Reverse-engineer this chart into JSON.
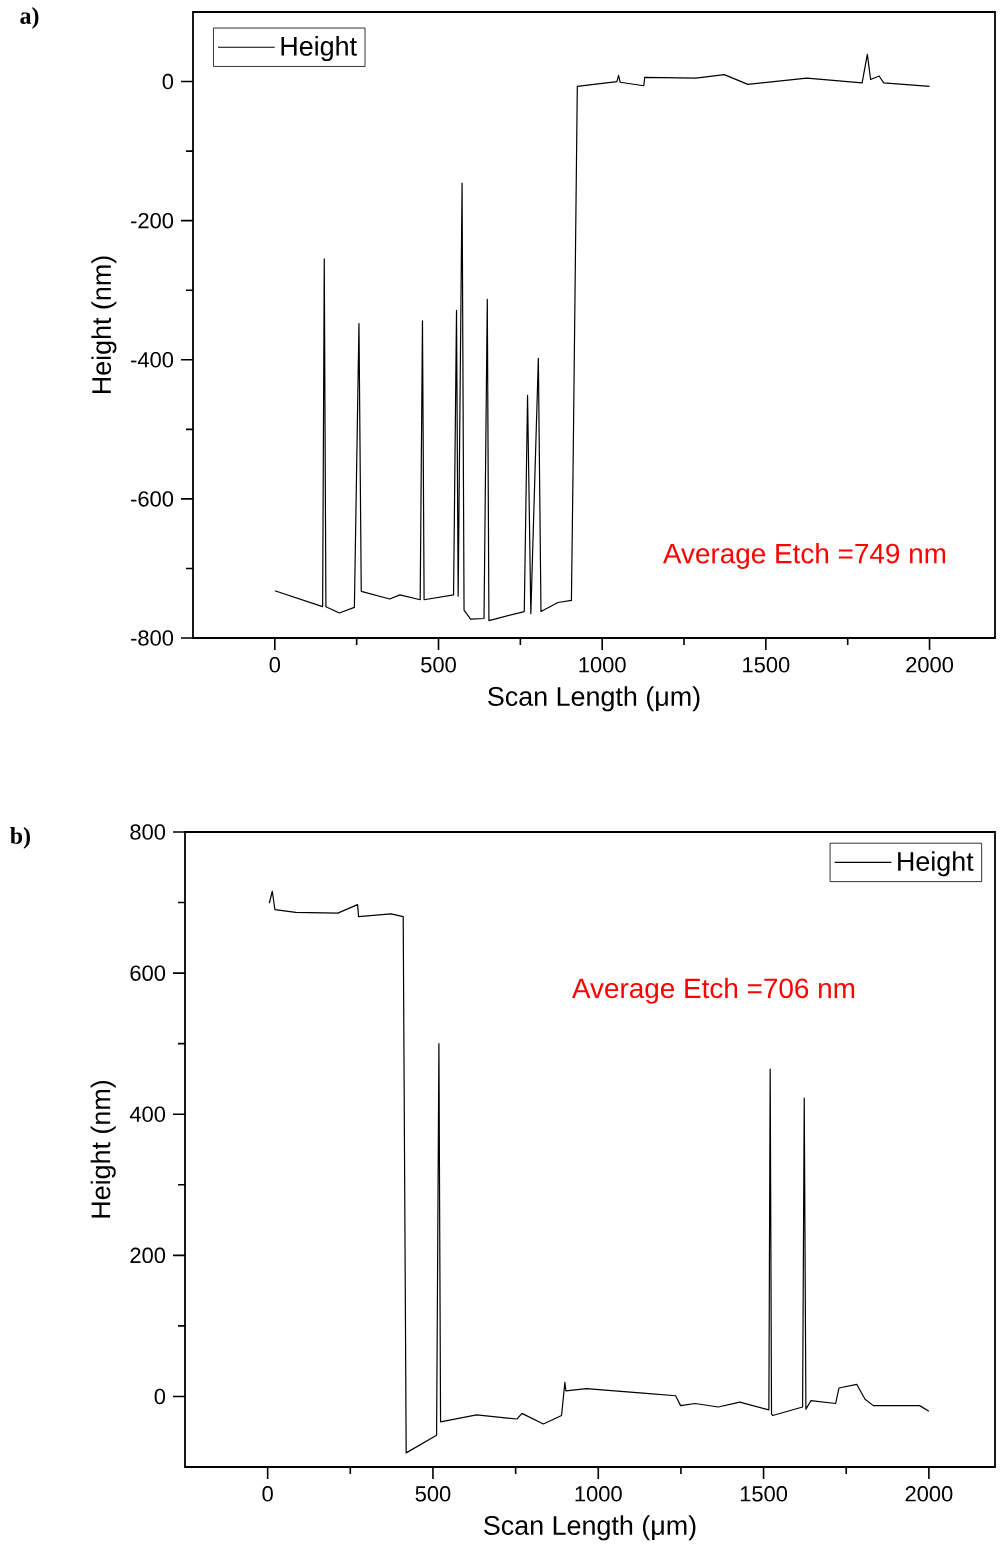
{
  "chart_data": [
    {
      "type": "line",
      "title": "a)",
      "xlabel": "Scan Length (μm)",
      "ylabel": "Height (nm)",
      "legend": "top left",
      "xlim": [
        -250,
        2200
      ],
      "ylim": [
        -800,
        100
      ],
      "xticks": [
        0,
        500,
        1000,
        1500,
        2000
      ],
      "yticks": [
        -800,
        -600,
        -400,
        -200,
        0
      ],
      "annotations": [
        "Average Etch =749 nm"
      ],
      "x": [
        0,
        146,
        151,
        156,
        197,
        243,
        257,
        264,
        351,
        382,
        444,
        451,
        456,
        546,
        555,
        560,
        572,
        578,
        598,
        639,
        649,
        654,
        762,
        772,
        782,
        805,
        813,
        865,
        906,
        911,
        924,
        1045,
        1050,
        1055,
        1127,
        1130,
        1286,
        1373,
        1445,
        1625,
        1794,
        1810,
        1820,
        1846,
        1860,
        2000
      ],
      "series": [
        {
          "name": "Height",
          "color": "#000000",
          "values": [
            -732,
            -755,
            -255,
            -755,
            -764,
            -756,
            -348,
            -733,
            -744,
            -738,
            -745,
            -344,
            -745,
            -738,
            -329,
            -740,
            -146,
            -760,
            -773,
            -772,
            -313,
            -775,
            -762,
            -451,
            -765,
            -398,
            -762,
            -749,
            -746,
            -559,
            -7,
            0,
            9,
            -1,
            -6,
            6,
            5,
            10,
            -4,
            5,
            -2,
            39,
            3,
            8,
            -2,
            -7
          ]
        }
      ]
    },
    {
      "type": "line",
      "title": "b)",
      "xlabel": "Scan Length (μm)",
      "ylabel": "Height (nm)",
      "legend": "top right",
      "xlim": [
        -250,
        2200
      ],
      "ylim": [
        -100,
        800
      ],
      "xticks": [
        0,
        500,
        1000,
        1500,
        2000
      ],
      "yticks": [
        0,
        200,
        400,
        600,
        800
      ],
      "annotations": [
        "Average Etch =706 nm"
      ],
      "x": [
        5,
        14,
        22,
        85,
        212,
        272,
        275,
        373,
        410,
        419,
        511,
        518,
        523,
        632,
        754,
        769,
        834,
        889,
        899,
        902,
        964,
        1154,
        1234,
        1249,
        1293,
        1363,
        1428,
        1516,
        1520,
        1524,
        1528,
        1618,
        1623,
        1628,
        1643,
        1718,
        1728,
        1782,
        1807,
        1832,
        1972,
        2000
      ],
      "series": [
        {
          "name": "Height",
          "color": "#000000",
          "values": [
            699,
            716,
            690,
            686,
            685,
            697,
            680,
            684,
            680,
            -80,
            -55,
            500,
            -36,
            -26,
            -32,
            -24,
            -39,
            -27,
            20,
            8,
            11,
            4,
            1,
            -13,
            -10,
            -15,
            -8,
            -19,
            464,
            -25,
            -27,
            -15,
            423,
            -18,
            -6,
            -10,
            12,
            17,
            -4,
            -13,
            -13,
            -21
          ]
        }
      ]
    }
  ]
}
